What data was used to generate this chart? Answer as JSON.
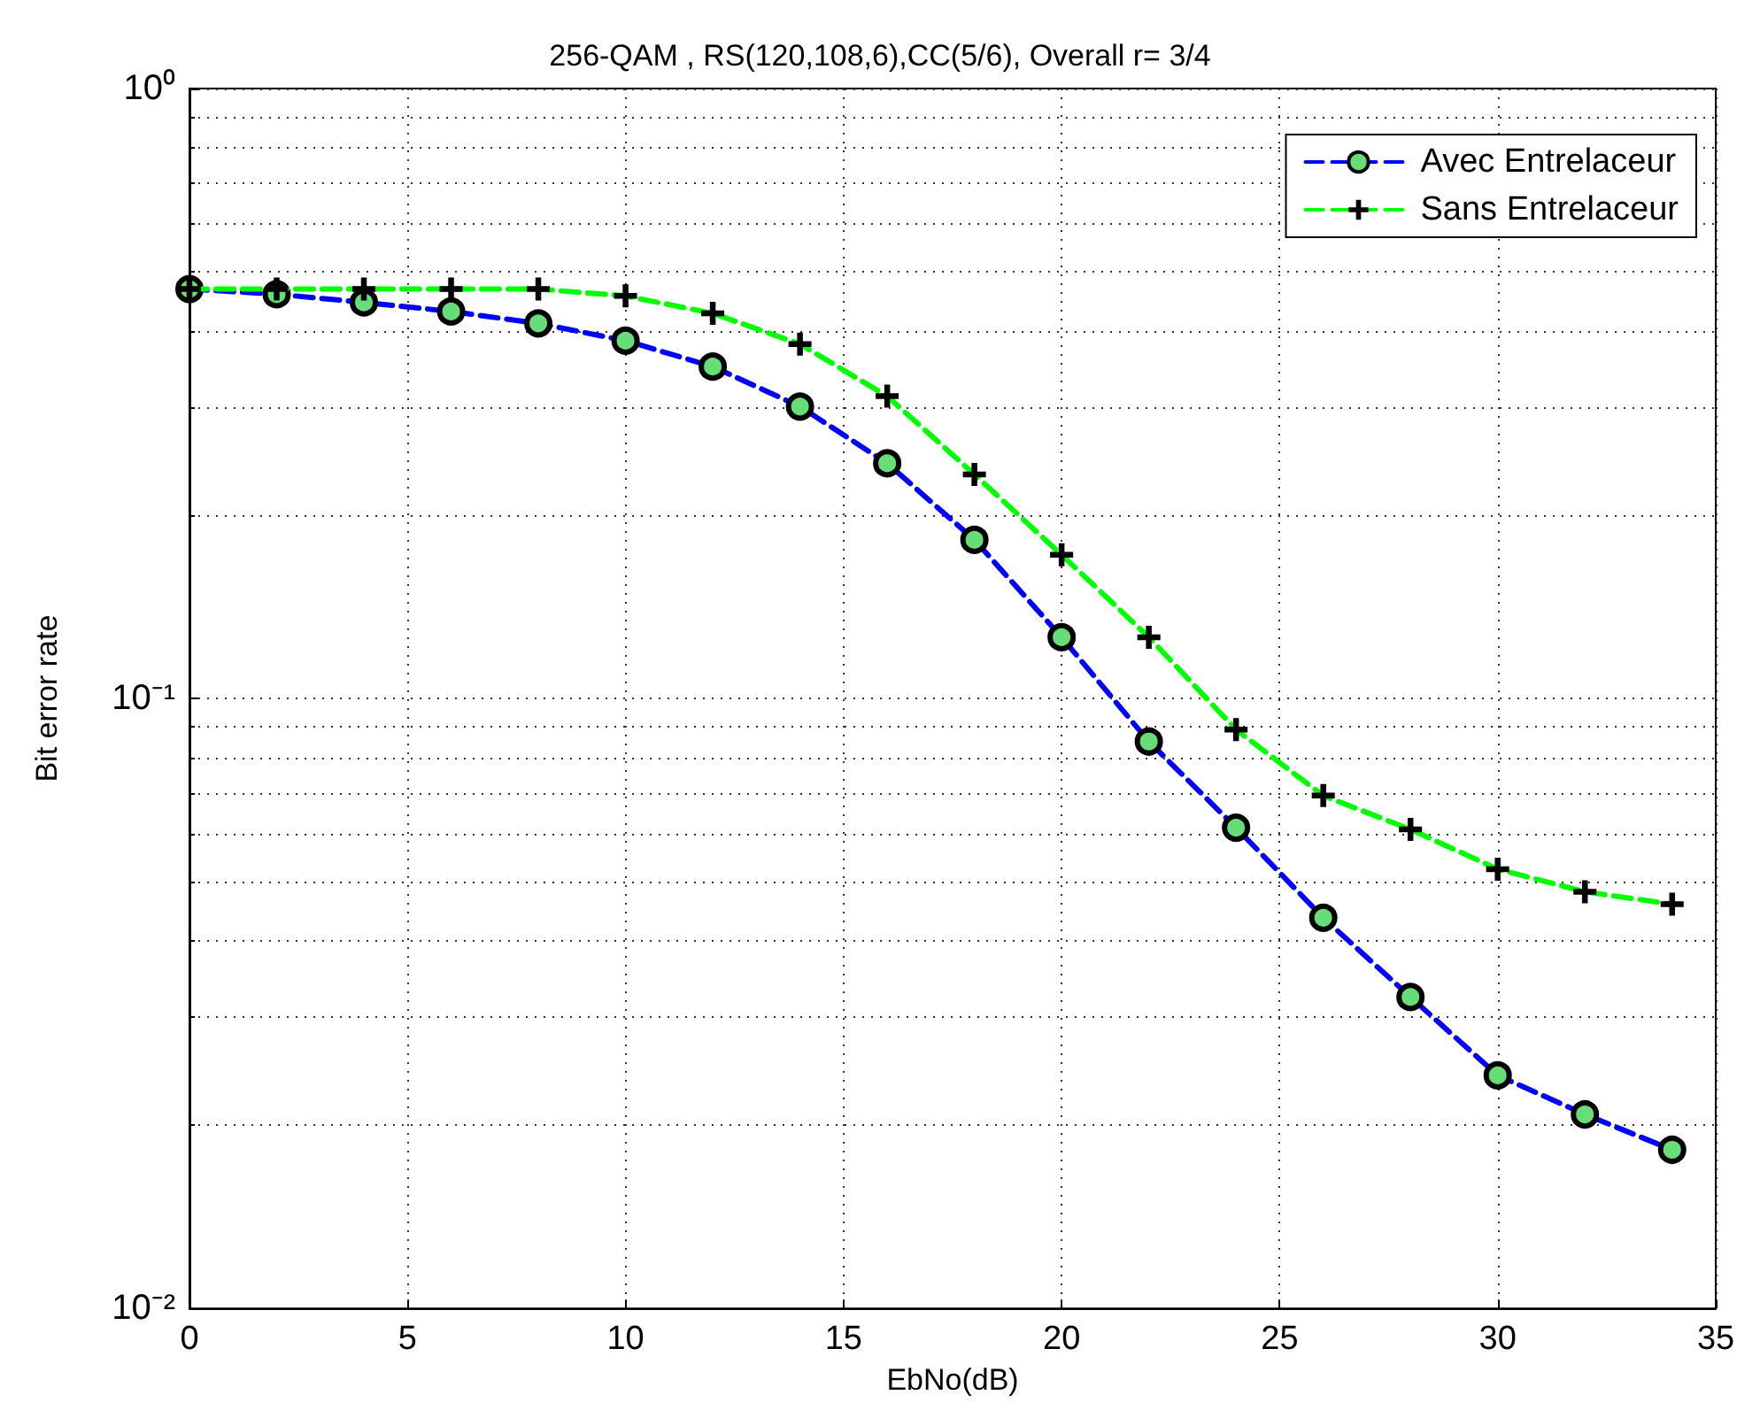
{
  "chart_data": {
    "type": "line",
    "title": "256-QAM , RS(120,108,6),CC(5/6), Overall r= 3/4",
    "xlabel": "EbNo(dB)",
    "ylabel": "Bit error rate",
    "x": [
      0,
      2,
      4,
      6,
      8,
      10,
      12,
      14,
      16,
      18,
      20,
      22,
      24,
      26,
      28,
      30,
      32,
      34
    ],
    "series": [
      {
        "name": "Avec Entrelaceur",
        "color": "#0000ff",
        "marker": "circle",
        "line_style": "dashed",
        "values": [
          0.469,
          0.46,
          0.446,
          0.431,
          0.412,
          0.386,
          0.35,
          0.301,
          0.243,
          0.182,
          0.126,
          0.085,
          0.0614,
          0.0437,
          0.0324,
          0.0241,
          0.0208,
          0.0182
        ]
      },
      {
        "name": "Sans Entrelaceur",
        "color": "#00ff00",
        "marker": "cross",
        "line_style": "dashed",
        "values": [
          0.469,
          0.469,
          0.469,
          0.469,
          0.469,
          0.457,
          0.428,
          0.381,
          0.313,
          0.233,
          0.172,
          0.126,
          0.0889,
          0.0693,
          0.061,
          0.0525,
          0.0482,
          0.046
        ]
      }
    ],
    "xlim": [
      0,
      35
    ],
    "xticks": [
      0,
      5,
      10,
      15,
      20,
      25,
      30,
      35
    ],
    "ylim": [
      0.01,
      1
    ],
    "yticks": [
      {
        "value": 0.01,
        "label": "10⁻²"
      },
      {
        "value": 0.1,
        "label": "10⁻¹"
      },
      {
        "value": 1,
        "label": "10⁰"
      }
    ],
    "log": "y",
    "grid": true,
    "legend": "top right"
  }
}
